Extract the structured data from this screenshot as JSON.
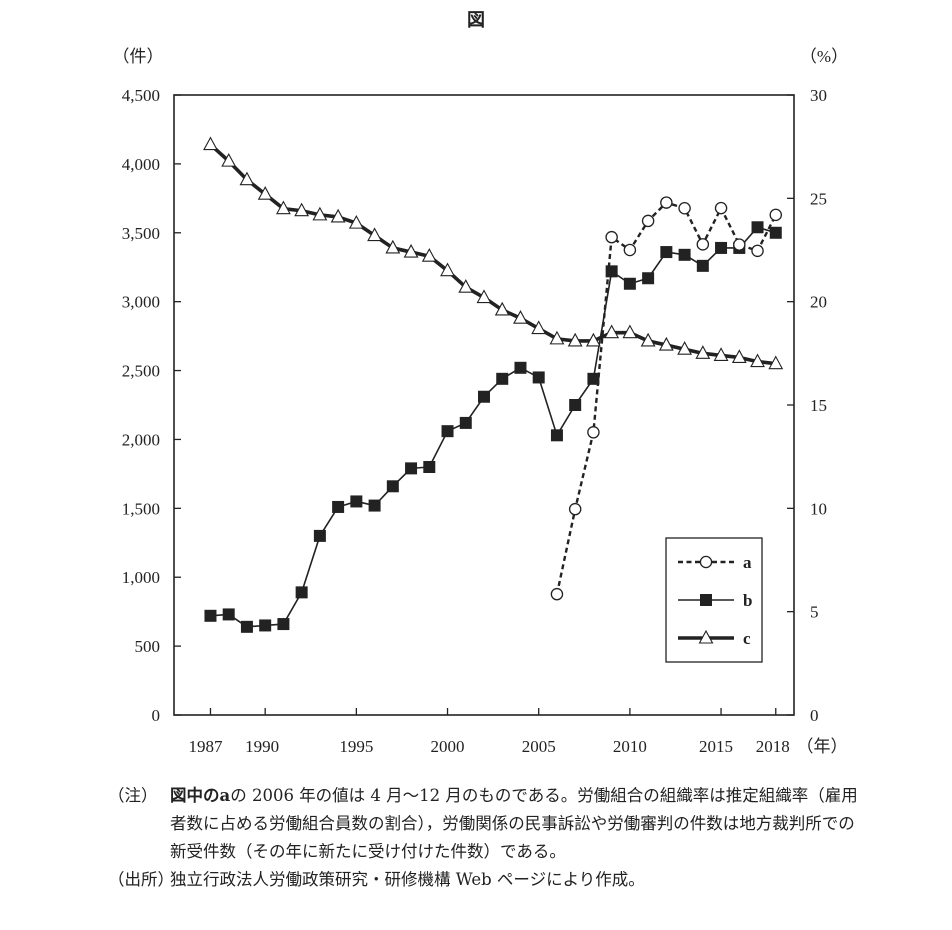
{
  "figure_title": "図",
  "chart_data": {
    "type": "line",
    "left_axis": {
      "unit_label": "（件）",
      "ylim": [
        0,
        4500
      ],
      "ticks": [
        "0",
        "500",
        "1,000",
        "1,500",
        "2,000",
        "2,500",
        "3,000",
        "3,500",
        "4,000",
        "4,500"
      ]
    },
    "right_axis": {
      "unit_label": "（%）",
      "ylim": [
        0,
        30
      ],
      "ticks": [
        "0",
        "5",
        "10",
        "15",
        "20",
        "25",
        "30"
      ]
    },
    "x_axis": {
      "unit_label": "（年）",
      "xlim": [
        1985,
        2019
      ],
      "ticks": [
        "1987",
        "1990",
        "1995",
        "2000",
        "2005",
        "2010",
        "2015",
        "2018"
      ]
    },
    "series": [
      {
        "name": "a",
        "axis": "left",
        "style": "dashed-open-circle",
        "x": [
          2006,
          2007,
          2008,
          2009,
          2010,
          2011,
          2012,
          2013,
          2014,
          2015,
          2016,
          2017,
          2018
        ],
        "values": [
          877,
          1494,
          2052,
          3468,
          3375,
          3586,
          3719,
          3678,
          3416,
          3679,
          3414,
          3369,
          3630
        ]
      },
      {
        "name": "b",
        "axis": "left",
        "style": "solid-filled-square",
        "x": [
          1987,
          1988,
          1989,
          1990,
          1991,
          1992,
          1993,
          1994,
          1995,
          1996,
          1997,
          1998,
          1999,
          2000,
          2001,
          2002,
          2003,
          2004,
          2005,
          2006,
          2007,
          2008,
          2009,
          2010,
          2011,
          2012,
          2013,
          2014,
          2015,
          2016,
          2017,
          2018
        ],
        "values": [
          720,
          730,
          640,
          650,
          660,
          890,
          1300,
          1510,
          1550,
          1520,
          1660,
          1790,
          1800,
          2060,
          2120,
          2310,
          2440,
          2520,
          2450,
          2030,
          2250,
          2440,
          3220,
          3130,
          3170,
          3360,
          3340,
          3260,
          3390,
          3390,
          3540,
          3500
        ]
      },
      {
        "name": "c",
        "axis": "right",
        "style": "thick-open-triangle",
        "x": [
          1987,
          1988,
          1989,
          1990,
          1991,
          1992,
          1993,
          1994,
          1995,
          1996,
          1997,
          1998,
          1999,
          2000,
          2001,
          2002,
          2003,
          2004,
          2005,
          2006,
          2007,
          2008,
          2009,
          2010,
          2011,
          2012,
          2013,
          2014,
          2015,
          2016,
          2017,
          2018
        ],
        "values": [
          27.6,
          26.8,
          25.9,
          25.2,
          24.5,
          24.4,
          24.2,
          24.1,
          23.8,
          23.2,
          22.6,
          22.4,
          22.2,
          21.5,
          20.7,
          20.2,
          19.6,
          19.2,
          18.7,
          18.2,
          18.1,
          18.1,
          18.5,
          18.5,
          18.1,
          17.9,
          17.7,
          17.5,
          17.4,
          17.3,
          17.1,
          17.0
        ]
      }
    ],
    "legend": {
      "position": "lower-right inside",
      "entries": [
        "a",
        "b",
        "c"
      ]
    }
  },
  "notes": {
    "note_label": "（注）",
    "note_prefix": "図中の",
    "note_bold": "a",
    "note_text": "の 2006 年の値は 4 月～12 月のものである。労働組合の組織率は推定組織率（雇用者数に占める労働組合員数の割合），労働関係の民事訴訟や労働審判の件数は地方裁判所での新受件数（その年に新たに受け付けた件数）である。",
    "source_label": "（出所）",
    "source_text": "独立行政法人労働政策研究・研修機構 Web ページにより作成。"
  }
}
